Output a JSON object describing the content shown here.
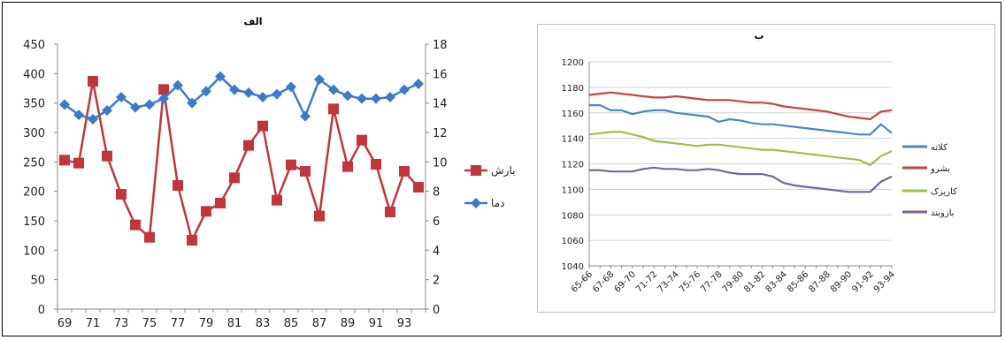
{
  "chart_data": [
    {
      "type": "line",
      "title": "الف",
      "categories": [
        "69",
        "70",
        "71",
        "72",
        "73",
        "74",
        "75",
        "76",
        "77",
        "78",
        "79",
        "80",
        "81",
        "82",
        "83",
        "84",
        "85",
        "86",
        "87",
        "88",
        "89",
        "90",
        "91",
        "92",
        "93",
        "94"
      ],
      "x_tick_labels": [
        "69",
        "71",
        "73",
        "75",
        "77",
        "79",
        "81",
        "83",
        "85",
        "87",
        "89",
        "91",
        "93"
      ],
      "ylim_left": [
        0,
        450
      ],
      "yticks_left": [
        0,
        50,
        100,
        150,
        200,
        250,
        300,
        350,
        400,
        450
      ],
      "ylim_right": [
        0,
        18
      ],
      "yticks_right": [
        0,
        2,
        4,
        6,
        8,
        10,
        12,
        14,
        16,
        18
      ],
      "grid": false,
      "legend_position": "right",
      "series": [
        {
          "name": "بارش",
          "axis": "left",
          "color": "#c0363a",
          "marker": "square",
          "values": [
            253,
            248,
            387,
            260,
            195,
            143,
            122,
            373,
            210,
            117,
            166,
            180,
            223,
            278,
            311,
            185,
            245,
            234,
            158,
            340,
            242,
            287,
            246,
            165,
            234,
            207
          ]
        },
        {
          "name": "دما",
          "axis": "right",
          "color": "#3a7bc8",
          "marker": "diamond",
          "values": [
            13.9,
            13.2,
            12.9,
            13.5,
            14.4,
            13.7,
            13.9,
            14.3,
            15.2,
            14.0,
            14.8,
            15.8,
            14.9,
            14.7,
            14.4,
            14.6,
            15.1,
            13.1,
            15.6,
            14.9,
            14.5,
            14.3,
            14.3,
            14.4,
            14.9,
            15.3
          ]
        }
      ]
    },
    {
      "type": "line",
      "title": "ب",
      "categories": [
        "65-66",
        "66-67",
        "67-68",
        "68-69",
        "69-70",
        "70-71",
        "71-72",
        "72-73",
        "73-74",
        "74-75",
        "75-76",
        "76-77",
        "77-78",
        "78-79",
        "79-80",
        "80-81",
        "81-82",
        "82-83",
        "83-84",
        "84-85",
        "85-86",
        "86-87",
        "87-88",
        "88-89",
        "89-90",
        "90-91",
        "91-92",
        "92-93",
        "93-94"
      ],
      "x_tick_labels": [
        "65-66",
        "67-68",
        "69-70",
        "71-72",
        "73-74",
        "75-76",
        "77-78",
        "79-80",
        "81-82",
        "83-84",
        "85-86",
        "87-88",
        "89-90",
        "91-92",
        "93-94"
      ],
      "ylim": [
        1040,
        1200
      ],
      "yticks": [
        1040,
        1060,
        1080,
        1100,
        1120,
        1140,
        1160,
        1180,
        1200
      ],
      "grid": true,
      "legend_position": "right",
      "series": [
        {
          "name": "کلاته",
          "color": "#4a86c8",
          "values": [
            1166,
            1166,
            1162,
            1162,
            1159,
            1161,
            1162,
            1162,
            1160,
            1159,
            1158,
            1157,
            1153,
            1155,
            1154,
            1152,
            1151,
            1151,
            1150,
            1149,
            1148,
            1147,
            1146,
            1145,
            1144,
            1143,
            1143,
            1151,
            1144
          ]
        },
        {
          "name": "بشرو",
          "color": "#c94040",
          "values": [
            1174,
            1175,
            1176,
            1175,
            1174,
            1173,
            1172,
            1172,
            1173,
            1172,
            1171,
            1170,
            1170,
            1170,
            1169,
            1168,
            1168,
            1167,
            1165,
            1164,
            1163,
            1162,
            1161,
            1159,
            1157,
            1156,
            1155,
            1161,
            1162
          ]
        },
        {
          "name": "کاریزک",
          "color": "#9ac14a",
          "values": [
            1143,
            1144,
            1145,
            1145,
            1143,
            1141,
            1138,
            1137,
            1136,
            1135,
            1134,
            1135,
            1135,
            1134,
            1133,
            1132,
            1131,
            1131,
            1130,
            1129,
            1128,
            1127,
            1126,
            1125,
            1124,
            1123,
            1119,
            1126,
            1130
          ]
        },
        {
          "name": "بازوبند",
          "color": "#7a629b",
          "values": [
            1115,
            1115,
            1114,
            1114,
            1114,
            1116,
            1117,
            1116,
            1116,
            1115,
            1115,
            1116,
            1115,
            1113,
            1112,
            1112,
            1112,
            1110,
            1105,
            1103,
            1102,
            1101,
            1100,
            1099,
            1098,
            1098,
            1098,
            1106,
            1110
          ]
        }
      ]
    }
  ]
}
